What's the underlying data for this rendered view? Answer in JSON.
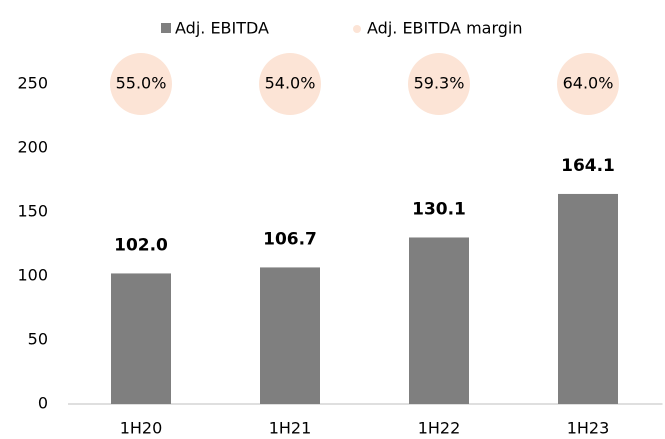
{
  "chart_data": {
    "type": "bar",
    "categories": [
      "1H20",
      "1H21",
      "1H22",
      "1H23"
    ],
    "series": [
      {
        "name": "Adj. EBITDA",
        "color": "#7f7f7f",
        "values": [
          102.0,
          106.7,
          130.1,
          164.1
        ],
        "value_labels": [
          "102.0",
          "106.7",
          "130.1",
          "164.1"
        ]
      },
      {
        "name": "Adj. EBITDA margin",
        "color": "#fce4d6",
        "values": [
          55.0,
          54.0,
          59.3,
          64.0
        ],
        "value_labels": [
          "55.0%",
          "54.0%",
          "59.3%",
          "64.0%"
        ]
      }
    ],
    "ylim": [
      0,
      250
    ],
    "yticks": [
      0,
      50,
      100,
      150,
      200,
      250
    ],
    "grid": false
  }
}
